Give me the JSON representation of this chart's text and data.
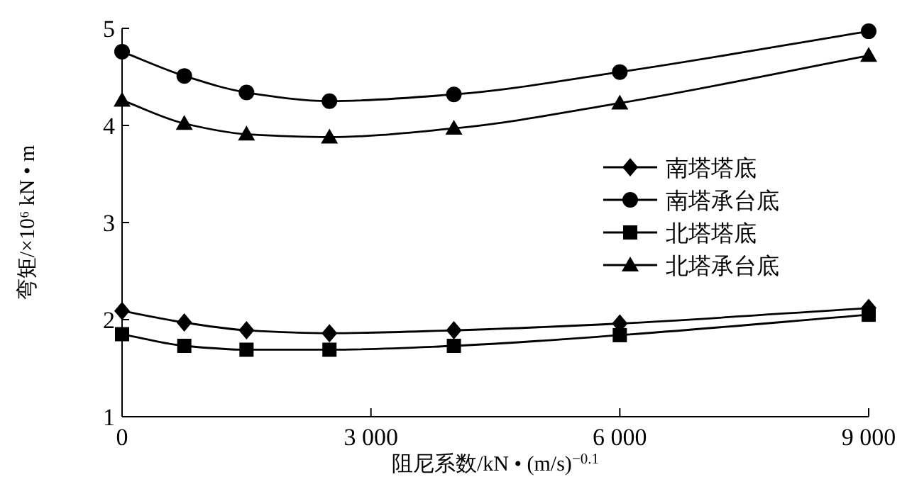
{
  "chart_data": {
    "type": "line",
    "xlabel": "阻尼系数/kN • (m/s)$^{−0.1}$",
    "ylabel": "弯矩/×10⁶ kN • m",
    "x": [
      0,
      750,
      1500,
      2500,
      4000,
      6000,
      9000
    ],
    "xlim": [
      0,
      9000
    ],
    "xticks": [
      0,
      {
        "value": 3000,
        "label": "3 000"
      },
      {
        "value": 6000,
        "label": "6 000"
      },
      {
        "value": 9000,
        "label": "9 000"
      }
    ],
    "ylim": [
      1,
      5
    ],
    "yticks": [
      1,
      2,
      3,
      4,
      5
    ],
    "grid": false,
    "legend": "right",
    "line_style": "solid",
    "series": [
      {
        "name": "南塔塔底",
        "color": "#000000",
        "marker": "diamond",
        "values": [
          2.09,
          1.97,
          1.89,
          1.86,
          1.89,
          1.96,
          2.12
        ]
      },
      {
        "name": "南塔承台底",
        "color": "#000000",
        "marker": "circle",
        "values": [
          4.76,
          4.51,
          4.34,
          4.25,
          4.32,
          4.55,
          4.97
        ]
      },
      {
        "name": "北塔塔底",
        "color": "#000000",
        "marker": "square",
        "values": [
          1.85,
          1.73,
          1.69,
          1.69,
          1.73,
          1.84,
          2.05
        ]
      },
      {
        "name": "北塔承台底",
        "color": "#000000",
        "marker": "triangle",
        "values": [
          4.26,
          4.02,
          3.91,
          3.88,
          3.97,
          4.23,
          4.72
        ]
      }
    ]
  }
}
